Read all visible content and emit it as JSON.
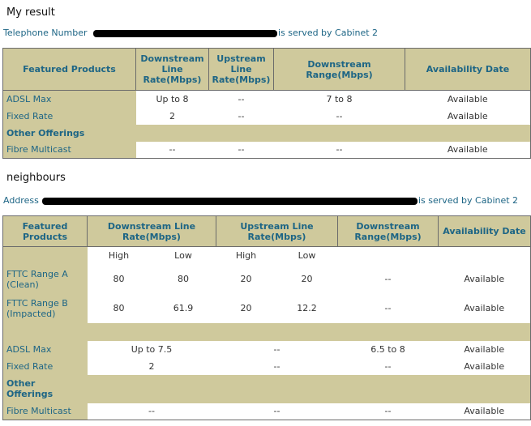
{
  "sections": [
    {
      "heading": "My result",
      "lookup_label": "Telephone Number",
      "lookup_result": "is served by Cabinet 2",
      "table": {
        "headers": [
          "Featured Products",
          "Downstream Line Rate(Mbps)",
          "Upstream Line Rate(Mbps)",
          "Downstream Range(Mbps)",
          "Availability Date"
        ],
        "rows": [
          [
            "ADSL Max",
            "Up to 8",
            "--",
            "7 to 8",
            "Available"
          ],
          [
            "Fixed Rate",
            "2",
            "--",
            "--",
            "Available"
          ]
        ],
        "group": "Other Offerings",
        "group_rows": [
          [
            "Fibre Multicast",
            "--",
            "--",
            "--",
            "Available"
          ]
        ]
      }
    },
    {
      "heading": "neighbours",
      "lookup_label": "Address",
      "lookup_result": "is served by Cabinet 2",
      "table": {
        "headers": [
          "Featured Products",
          "Downstream Line Rate(Mbps)",
          "Upstream Line Rate(Mbps)",
          "Downstream Range(Mbps)",
          "Availability Date"
        ],
        "subheaders": [
          "High",
          "Low",
          "High",
          "Low"
        ],
        "fibre_rows": [
          [
            "FTTC Range A (Clean)",
            "80",
            "80",
            "20",
            "20",
            "--",
            "Available"
          ],
          [
            "FTTC Range B (Impacted)",
            "80",
            "61.9",
            "20",
            "12.2",
            "--",
            "Available"
          ]
        ],
        "rows": [
          [
            "ADSL Max",
            "Up to 7.5",
            "--",
            "6.5 to 8",
            "Available"
          ],
          [
            "Fixed Rate",
            "2",
            "--",
            "--",
            "Available"
          ]
        ],
        "group": "Other Offerings",
        "group_rows": [
          [
            "Fibre Multicast",
            "--",
            "--",
            "--",
            "Available"
          ]
        ]
      }
    }
  ]
}
